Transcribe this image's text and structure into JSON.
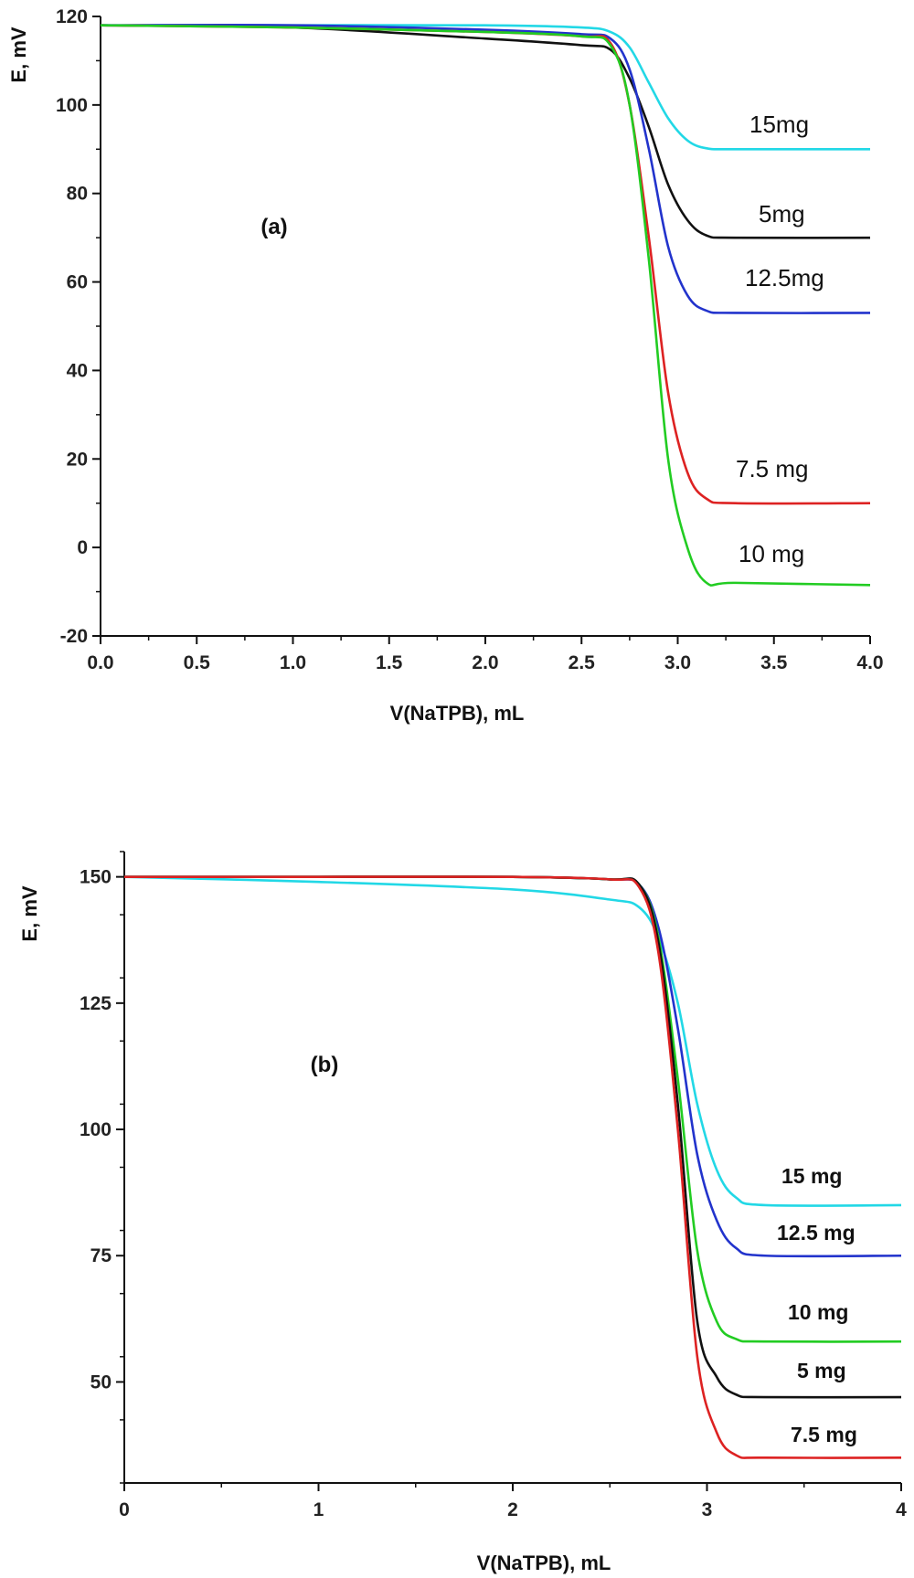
{
  "chart_data": [
    {
      "type": "line",
      "panel_label": "(a)",
      "xlabel": "V(NaTPB), mL",
      "ylabel": "E, mV",
      "xlim": [
        0,
        4
      ],
      "ylim": [
        -20,
        120
      ],
      "xticks": [
        "0.0",
        "0.5",
        "1.0",
        "1.5",
        "2.0",
        "2.5",
        "3.0",
        "3.5",
        "4.0"
      ],
      "yticks": [
        "-20",
        "0",
        "20",
        "40",
        "60",
        "80",
        "100",
        "120"
      ],
      "series": [
        {
          "name": "15mg",
          "color": "#22d8e6",
          "x": [
            0,
            1.0,
            2.0,
            2.5,
            2.65,
            2.75,
            2.85,
            2.95,
            3.05,
            3.15,
            3.3,
            4.0
          ],
          "y": [
            118,
            118,
            118,
            117.5,
            116.5,
            113,
            105,
            97,
            92,
            90.2,
            90,
            90
          ]
        },
        {
          "name": "5mg",
          "color": "#111111",
          "x": [
            0,
            1.0,
            2.0,
            2.5,
            2.65,
            2.75,
            2.85,
            2.95,
            3.05,
            3.15,
            3.3,
            4.0
          ],
          "y": [
            118,
            117.5,
            115,
            113.5,
            112.5,
            106,
            95,
            82,
            74,
            70.5,
            70,
            70
          ]
        },
        {
          "name": "12.5mg",
          "color": "#2233cc",
          "x": [
            0,
            1.0,
            2.0,
            2.5,
            2.65,
            2.75,
            2.85,
            2.95,
            3.05,
            3.15,
            3.3,
            4.0
          ],
          "y": [
            118,
            118,
            117,
            116,
            115,
            108,
            90,
            68,
            57,
            53.5,
            53,
            53
          ]
        },
        {
          "name": "7.5 mg",
          "color": "#dd2222",
          "x": [
            0,
            1.0,
            2.0,
            2.5,
            2.65,
            2.75,
            2.85,
            2.95,
            3.05,
            3.15,
            3.3,
            4.0
          ],
          "y": [
            118,
            117.5,
            116.5,
            115.5,
            114,
            100,
            70,
            35,
            17,
            11,
            10,
            10
          ]
        },
        {
          "name": "10 mg",
          "color": "#22cc22",
          "x": [
            0,
            1.0,
            2.0,
            2.5,
            2.65,
            2.75,
            2.85,
            2.95,
            3.05,
            3.15,
            3.3,
            4.0
          ],
          "y": [
            118,
            117.5,
            116.5,
            115.5,
            113.5,
            100,
            65,
            20,
            0,
            -8,
            -8,
            -8.5
          ]
        }
      ]
    },
    {
      "type": "line",
      "panel_label": "(b)",
      "xlabel": "V(NaTPB), mL",
      "ylabel": "E, mV",
      "xlim": [
        0,
        4
      ],
      "ylim": [
        30,
        155
      ],
      "xticks": [
        "0",
        "1",
        "2",
        "3",
        "4"
      ],
      "yticks": [
        "50",
        "75",
        "100",
        "125",
        "150"
      ],
      "series": [
        {
          "name": "15 mg",
          "color": "#22d8e6",
          "x": [
            0,
            1.0,
            2.0,
            2.5,
            2.65,
            2.75,
            2.85,
            2.95,
            3.05,
            3.15,
            3.3,
            4.0
          ],
          "y": [
            150,
            149,
            147.5,
            145.5,
            144,
            138,
            125,
            105,
            92,
            86.5,
            85,
            85
          ]
        },
        {
          "name": "12.5 mg",
          "color": "#2233cc",
          "x": [
            0,
            1.0,
            2.0,
            2.5,
            2.65,
            2.75,
            2.85,
            2.95,
            3.05,
            3.15,
            3.3,
            4.0
          ],
          "y": [
            150,
            150,
            150,
            149.5,
            148.5,
            140,
            120,
            95,
            82,
            76.5,
            75,
            75
          ]
        },
        {
          "name": "10 mg",
          "color": "#22cc22",
          "x": [
            0,
            1.0,
            2.0,
            2.5,
            2.65,
            2.75,
            2.85,
            2.95,
            3.05,
            3.15,
            3.3,
            4.0
          ],
          "y": [
            150,
            150,
            150,
            149.5,
            148.5,
            138,
            110,
            76,
            62,
            58.5,
            58,
            58
          ]
        },
        {
          "name": "5 mg",
          "color": "#111111",
          "x": [
            0,
            1.0,
            2.0,
            2.5,
            2.65,
            2.75,
            2.85,
            2.95,
            3.05,
            3.15,
            3.3,
            4.0
          ],
          "y": [
            150,
            150,
            150,
            149.5,
            148.5,
            137,
            105,
            62,
            51,
            47.5,
            47,
            47
          ]
        },
        {
          "name": "7.5 mg",
          "color": "#dd2222",
          "x": [
            0,
            1.0,
            2.0,
            2.5,
            2.65,
            2.75,
            2.85,
            2.95,
            3.05,
            3.15,
            3.3,
            4.0
          ],
          "y": [
            150,
            150,
            150,
            149.5,
            148,
            135,
            100,
            55,
            40,
            35.5,
            35,
            35
          ]
        }
      ]
    }
  ]
}
